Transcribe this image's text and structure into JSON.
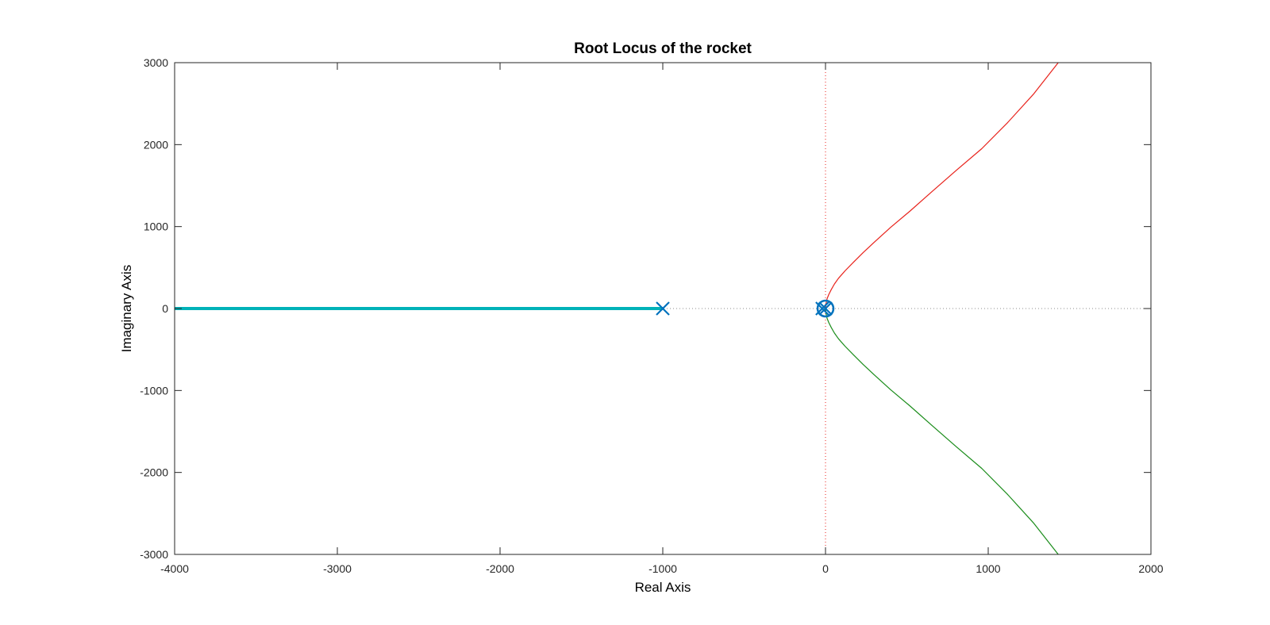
{
  "chart_data": {
    "type": "line",
    "title": "Root Locus of the rocket",
    "xlabel": "Real Axis",
    "ylabel": "Imaginary Axis",
    "xlim": [
      -4000,
      2000
    ],
    "ylim": [
      -3000,
      3000
    ],
    "xticks": [
      -4000,
      -3000,
      -2000,
      -1000,
      0,
      1000,
      2000
    ],
    "yticks": [
      -3000,
      -2000,
      -1000,
      0,
      1000,
      2000,
      3000
    ],
    "xtick_labels": [
      "-4000",
      "-3000",
      "-2000",
      "-1000",
      "0",
      "1000",
      "2000"
    ],
    "ytick_labels": [
      "-3000",
      "-2000",
      "-1000",
      "0",
      "1000",
      "2000",
      "3000"
    ],
    "grid": false,
    "reference_lines": {
      "real_axis": true,
      "imaginary_axis": true
    },
    "poles": [
      {
        "x": -1000,
        "y": 0
      },
      {
        "x": -20,
        "y": 0
      },
      {
        "x": 0,
        "y": 0
      }
    ],
    "zeros": [
      {
        "x": 0,
        "y": 0
      }
    ],
    "series": [
      {
        "color": "#00b2b8",
        "points": [
          [
            -1000,
            0
          ],
          [
            -4000,
            0
          ]
        ]
      },
      {
        "color": "#e8221b",
        "points": [
          [
            0,
            0
          ],
          [
            3,
            60
          ],
          [
            10,
            120
          ],
          [
            20,
            170
          ],
          [
            35,
            230
          ],
          [
            55,
            300
          ],
          [
            80,
            370
          ],
          [
            120,
            460
          ],
          [
            170,
            560
          ],
          [
            230,
            680
          ],
          [
            300,
            810
          ],
          [
            400,
            990
          ],
          [
            520,
            1190
          ],
          [
            650,
            1420
          ],
          [
            800,
            1680
          ],
          [
            960,
            1950
          ],
          [
            1120,
            2270
          ],
          [
            1280,
            2620
          ],
          [
            1430,
            3000
          ]
        ]
      },
      {
        "color": "#1a8c1a",
        "points": [
          [
            0,
            0
          ],
          [
            3,
            -60
          ],
          [
            10,
            -120
          ],
          [
            20,
            -170
          ],
          [
            35,
            -230
          ],
          [
            55,
            -300
          ],
          [
            80,
            -370
          ],
          [
            120,
            -460
          ],
          [
            170,
            -560
          ],
          [
            230,
            -680
          ],
          [
            300,
            -810
          ],
          [
            400,
            -990
          ],
          [
            520,
            -1190
          ],
          [
            650,
            -1420
          ],
          [
            800,
            -1680
          ],
          [
            960,
            -1950
          ],
          [
            1120,
            -2270
          ],
          [
            1280,
            -2620
          ],
          [
            1430,
            -3000
          ]
        ]
      }
    ],
    "marker_color": "#0072bd",
    "frame_color": "#262626"
  }
}
